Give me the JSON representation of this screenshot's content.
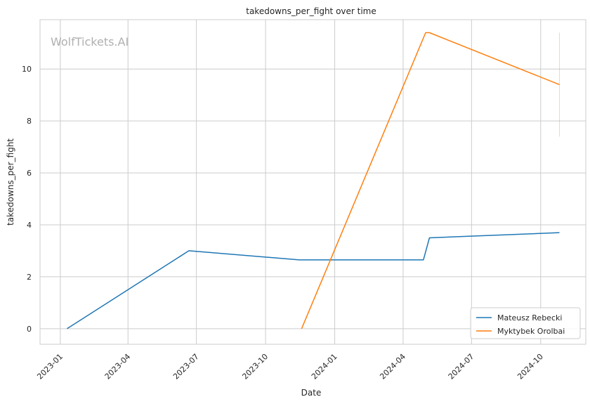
{
  "watermark": "WolfTickets.AI",
  "chart_data": {
    "type": "line",
    "title": "takedowns_per_fight over time",
    "xlabel": "Date",
    "ylabel": "takedowns_per_fight",
    "x_ticks": [
      "2023-01",
      "2023-04",
      "2023-07",
      "2023-10",
      "2024-01",
      "2024-04",
      "2024-07",
      "2024-10"
    ],
    "y_ticks": [
      0,
      2,
      4,
      6,
      8,
      10
    ],
    "xlim": [
      "2022-12-05",
      "2024-11-30"
    ],
    "ylim": [
      -0.6,
      11.9
    ],
    "grid": true,
    "legend_position": "bottom-right",
    "series": [
      {
        "name": "Mateusz Rebecki",
        "color": "#1f77b4",
        "points": [
          {
            "x": "2023-01-10",
            "y": 0.0
          },
          {
            "x": "2023-06-21",
            "y": 3.0
          },
          {
            "x": "2023-11-15",
            "y": 2.65
          },
          {
            "x": "2024-04-28",
            "y": 2.65
          },
          {
            "x": "2024-05-06",
            "y": 3.5
          },
          {
            "x": "2024-10-26",
            "y": 3.7
          }
        ]
      },
      {
        "name": "Myktybek Orolbai",
        "color": "#ff7f0e",
        "points": [
          {
            "x": "2023-11-18",
            "y": 0.0
          },
          {
            "x": "2024-05-01",
            "y": 11.4
          },
          {
            "x": "2024-05-06",
            "y": 11.4
          },
          {
            "x": "2024-10-26",
            "y": 9.4
          }
        ]
      }
    ],
    "annotations": [
      {
        "type": "vertical-segment",
        "x": "2024-10-26",
        "y_from": 7.4,
        "y_to": 11.4,
        "color": "#ff7f0e"
      }
    ]
  }
}
